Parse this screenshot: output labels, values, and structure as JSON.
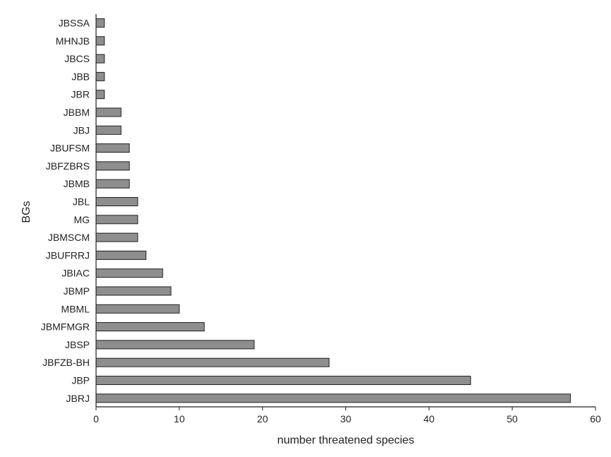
{
  "chart_data": {
    "type": "bar",
    "orientation": "horizontal",
    "categories": [
      "JBSSA",
      "MHNJB",
      "JBCS",
      "JBB",
      "JBR",
      "JBBM",
      "JBJ",
      "JBUFSM",
      "JBFZBRS",
      "JBMB",
      "JBL",
      "MG",
      "JBMSCM",
      "JBUFRRJ",
      "JBIAC",
      "JBMP",
      "MBML",
      "JBMFMGR",
      "JBSP",
      "JBFZB-BH",
      "JBP",
      "JBRJ"
    ],
    "values": [
      1,
      1,
      1,
      1,
      1,
      3,
      3,
      4,
      4,
      4,
      5,
      5,
      5,
      6,
      8,
      9,
      10,
      13,
      19,
      28,
      45,
      57
    ],
    "xlabel": "number threatened species",
    "ylabel": "BGs",
    "xlim": [
      0,
      60
    ],
    "xticks": [
      "0",
      "10",
      "20",
      "30",
      "40",
      "50",
      "60"
    ],
    "grid": false,
    "bar_color": "#8e8e8e"
  }
}
